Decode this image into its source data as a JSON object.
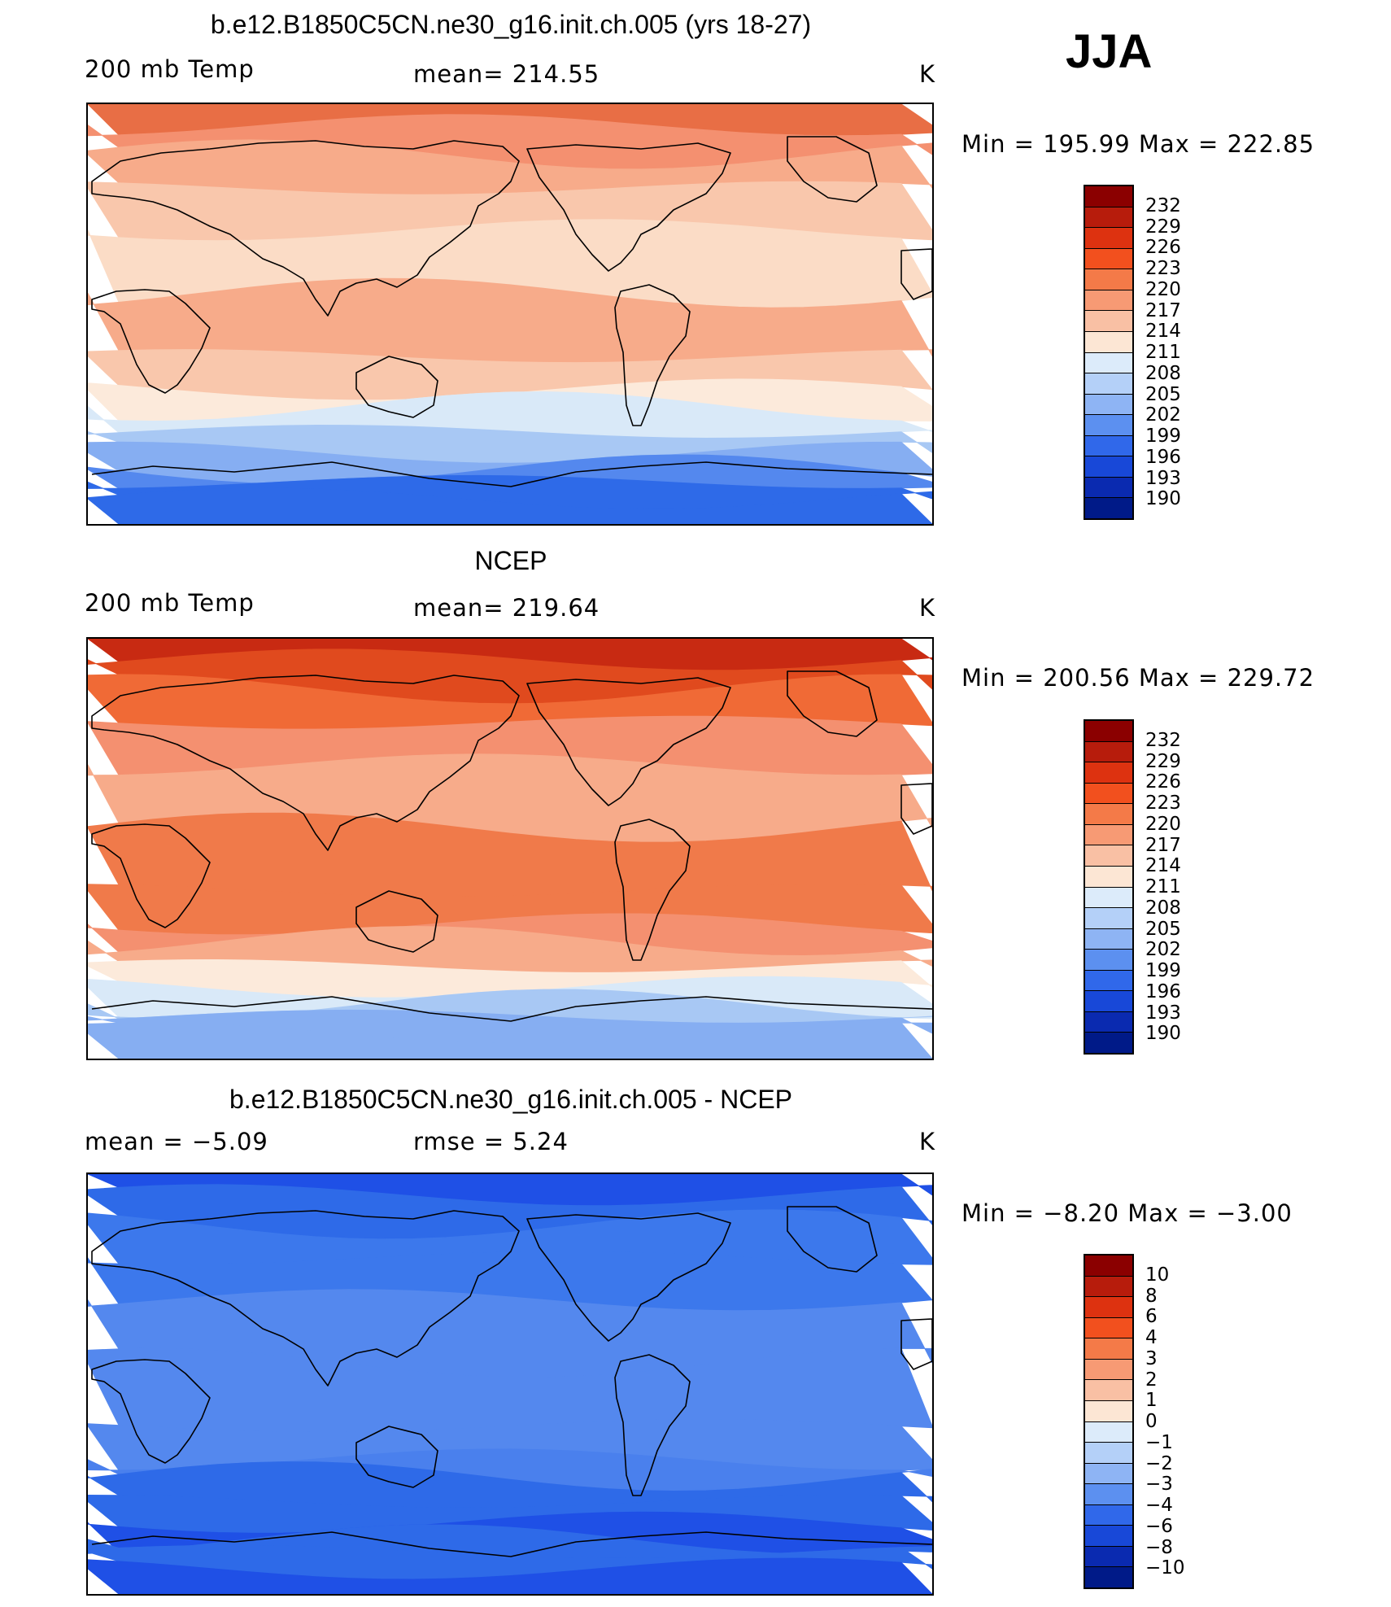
{
  "season": "JJA",
  "panels": [
    {
      "title": "b.e12.B1850C5CN.ne30_g16.init.ch.005 (yrs 18-27)",
      "left_label": "200 mb Temp",
      "center_label": "mean= 214.55",
      "units": "K",
      "minmax": "Min = 195.99 Max = 222.85",
      "colorbar_labels": [
        "232",
        "229",
        "226",
        "223",
        "220",
        "217",
        "214",
        "211",
        "208",
        "205",
        "202",
        "199",
        "196",
        "193",
        "190"
      ],
      "bands": [
        "#E86E45",
        "#F49070",
        "#F7AB8A",
        "#F9C7AC",
        "#FBDCC6",
        "#F7AB8A",
        "#F9C7AC",
        "#FCEADB",
        "#D9E9F8",
        "#A8C8F4",
        "#86AEF2",
        "#5488EE",
        "#2E6AE8",
        "#2E6AE8"
      ]
    },
    {
      "title": "NCEP",
      "left_label": "200 mb Temp",
      "center_label": "mean= 219.64",
      "units": "K",
      "minmax": "Min = 200.56 Max = 229.72",
      "colorbar_labels": [
        "232",
        "229",
        "226",
        "223",
        "220",
        "217",
        "214",
        "211",
        "208",
        "205",
        "202",
        "199",
        "196",
        "193",
        "190"
      ],
      "bands": [
        "#C82A12",
        "#E04A1E",
        "#F06A36",
        "#F49070",
        "#F7AB8A",
        "#F07A4A",
        "#F07A4A",
        "#F49070",
        "#F7AB8A",
        "#FCEADB",
        "#D9E9F8",
        "#A8C8F4",
        "#86AEF2",
        "#86AEF2"
      ]
    },
    {
      "title": "b.e12.B1850C5CN.ne30_g16.init.ch.005 - NCEP",
      "left_label": "mean = −5.09",
      "center_label": "rmse = 5.24",
      "units": "K",
      "minmax": "Min = −8.20 Max = −3.00",
      "colorbar_labels": [
        "10",
        "8",
        "6",
        "4",
        "3",
        "2",
        "1",
        "0",
        "−1",
        "−2",
        "−3",
        "−4",
        "−6",
        "−8",
        "−10"
      ],
      "bands": [
        "#1F50E6",
        "#2E6AE8",
        "#3C78EC",
        "#3C78EC",
        "#5488EE",
        "#5488EE",
        "#5488EE",
        "#4A80ED",
        "#2E6AE8",
        "#2E6AE8",
        "#1F50E6",
        "#2E6AE8",
        "#2E6AE8",
        "#1F50E6"
      ]
    }
  ],
  "colorbar_colors": [
    "#8B0000",
    "#B71C0C",
    "#DD3210",
    "#F2501E",
    "#F47A48",
    "#F79A74",
    "#F9C0A4",
    "#FCE6D4",
    "#DCEBFA",
    "#B4D0F8",
    "#8EB4F4",
    "#5C90F0",
    "#3068EA",
    "#1848D8",
    "#0A2AB0",
    "#001A88"
  ]
}
